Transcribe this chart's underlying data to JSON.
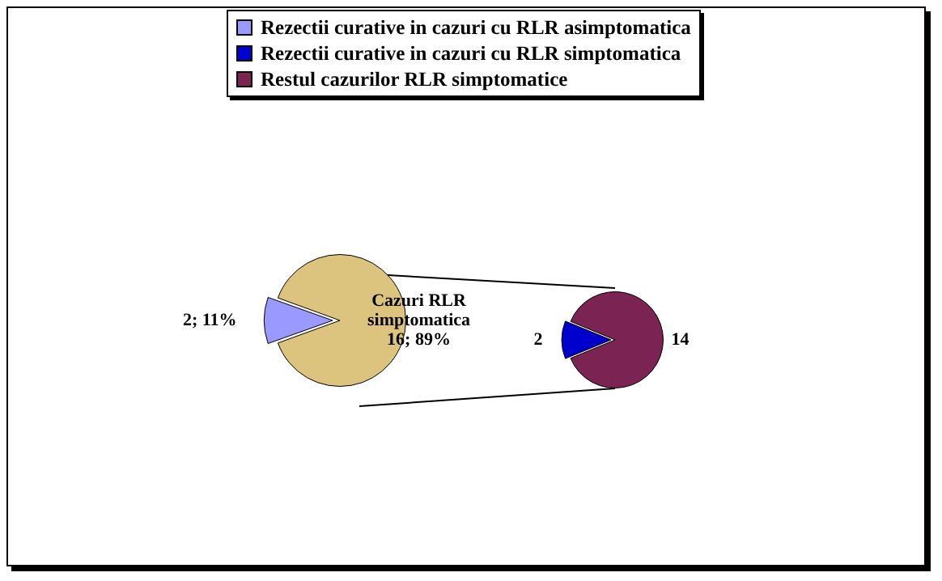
{
  "chart_data": [
    {
      "type": "pie",
      "categories": [
        "Rezectii curative in cazuri cu RLR asimptomatica",
        "Cazuri RLR simptomatica"
      ],
      "values": [
        2,
        16
      ],
      "colors": [
        "#9999ff",
        "#dcc47e"
      ],
      "value_labels": [
        "2; 11%",
        "16; 89%"
      ],
      "legend": "top"
    },
    {
      "type": "pie",
      "categories": [
        "Rezectii curative in cazuri cu RLR simptomatica",
        "Restul cazurilor RLR simptomatice"
      ],
      "values": [
        2,
        14
      ],
      "colors": [
        "#0000cc",
        "#7b2352"
      ],
      "value_labels": [
        "2",
        "14"
      ],
      "legend": "top"
    }
  ]
}
